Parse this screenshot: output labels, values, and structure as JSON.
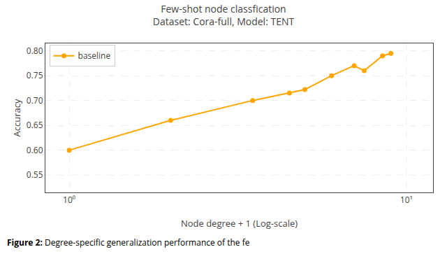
{
  "chart_data": {
    "type": "line",
    "title": "Few-shot node classfication",
    "subtitle": "Dataset: Cora-full, Model: TENT",
    "xlabel": "Node degree + 1 (Log-scale)",
    "ylabel": "Accuracy",
    "annotations": [
      "Figure 2:",
      "Degree-specific generalization performance of the fe"
    ],
    "x": [
      1.0,
      2.0,
      3.5,
      4.5,
      5.0,
      6.0,
      7.0,
      7.5,
      8.5,
      9.0
    ],
    "series": [
      {
        "name": "baseline",
        "color": "#FFA500",
        "marker": "circle",
        "line_style": "solid",
        "values": [
          0.6,
          0.66,
          0.7,
          0.715,
          0.722,
          0.75,
          0.77,
          0.76,
          0.79,
          0.795
        ]
      }
    ],
    "xlim": [
      0.85,
      12.0
    ],
    "xticks": [
      {
        "value": 1,
        "label": "10⁰"
      },
      {
        "value": 10,
        "label": "10¹"
      }
    ],
    "ylim": [
      0.515,
      0.815
    ],
    "yticks": [
      0.55,
      {
        "value": 0.6,
        "label": "0.60"
      },
      0.65,
      {
        "value": 0.7,
        "label": "0.70"
      },
      0.75,
      {
        "value": 0.8,
        "label": "0.80"
      }
    ],
    "log": "x",
    "grid": true,
    "legend": "upper left"
  }
}
